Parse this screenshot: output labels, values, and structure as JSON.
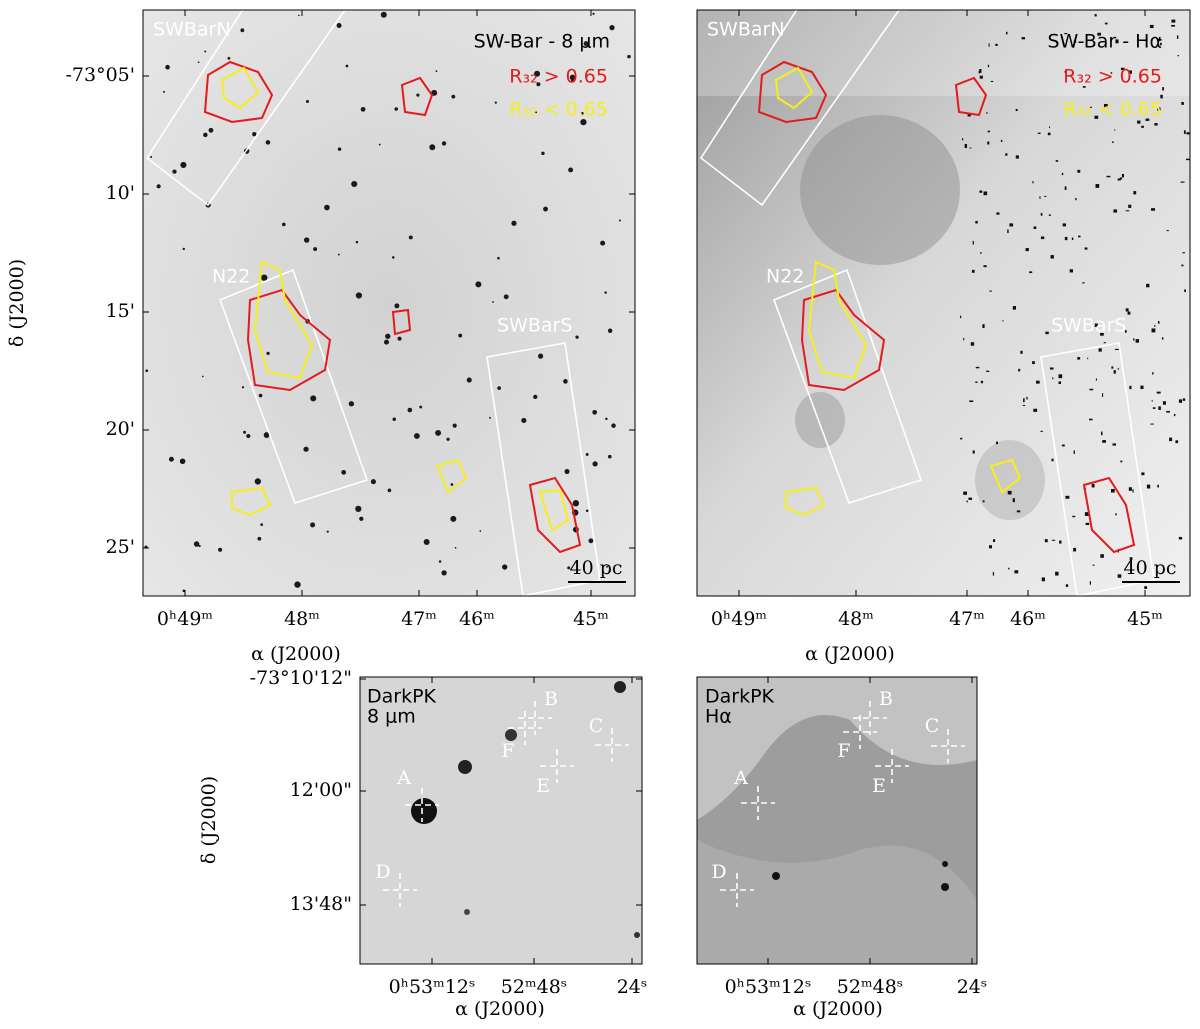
{
  "panels": [
    {
      "title": "SW-Bar - 8 μm",
      "legend": [
        "R₃₂ > 0.65",
        "R₃₂ < 0.65"
      ],
      "regions": [
        "SWBarN",
        "N22",
        "SWBarS"
      ],
      "scale_bar": "40 pc",
      "y_ticks": [
        "-73°05'",
        "10'",
        "15'",
        "20'",
        "25'"
      ],
      "x_ticks": [
        "0ʰ49ᵐ",
        "48ᵐ",
        "47ᵐ",
        "46ᵐ",
        "45ᵐ"
      ],
      "x_label": "α (J2000)",
      "y_label": "δ (J2000)"
    },
    {
      "title": "SW-Bar - Hα",
      "legend": [
        "R₃₂ > 0.65",
        "R₃₂ < 0.65"
      ],
      "regions": [
        "SWBarN",
        "N22",
        "SWBarS"
      ],
      "scale_bar": "40 pc",
      "x_ticks": [
        "0ʰ49ᵐ",
        "48ᵐ",
        "47ᵐ",
        "46ᵐ",
        "45ᵐ"
      ],
      "x_label": "α (J2000)"
    },
    {
      "title": "DarkPK",
      "subtitle": "8 μm",
      "markers": [
        "A",
        "B",
        "C",
        "D",
        "E",
        "F"
      ],
      "y_ticks": [
        "-73°10'12\"",
        "12'00\"",
        "13'48\""
      ],
      "x_ticks": [
        "0ʰ53ᵐ12ˢ",
        "52ᵐ48ˢ",
        "24ˢ"
      ],
      "x_label": "α (J2000)",
      "y_label": "δ (J2000)"
    },
    {
      "title": "DarkPK",
      "subtitle": "Hα",
      "markers": [
        "A",
        "B",
        "C",
        "D",
        "E",
        "F"
      ],
      "x_ticks": [
        "0ʰ53ᵐ12ˢ",
        "52ᵐ48ˢ",
        "24ˢ"
      ],
      "x_label": "α (J2000)"
    }
  ]
}
